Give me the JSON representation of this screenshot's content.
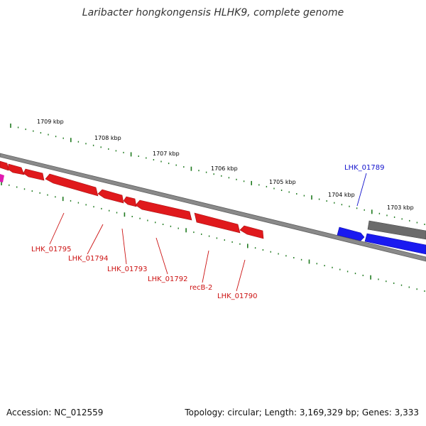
{
  "title": "Laribacter hongkongensis HLHK9, complete genome",
  "footer": {
    "accession": "Accession: NC_012559",
    "summary": "Topology: circular; Length: 3,169,329 bp; Genes: 3,333"
  },
  "colors": {
    "backbone": "#8a8a8a",
    "tick": "#1f7a1f",
    "reverse_gene": "#e0191c",
    "forward_gene": "#1a1af0",
    "other_gene": "#6b6b6b",
    "accent_gene": "#e01ab0",
    "reverse_label": "#cc1111",
    "forward_label": "#1111cc"
  },
  "kbp_labels": [
    "1709 kbp",
    "1708 kbp",
    "1707 kbp",
    "1706 kbp",
    "1705 kbp",
    "1704 kbp",
    "1703 kbp"
  ],
  "gene_labels": [
    "LHK_01795",
    "LHK_01794",
    "LHK_01793",
    "LHK_01792",
    "recB-2",
    "LHK_01790",
    "LHK_01789"
  ]
}
